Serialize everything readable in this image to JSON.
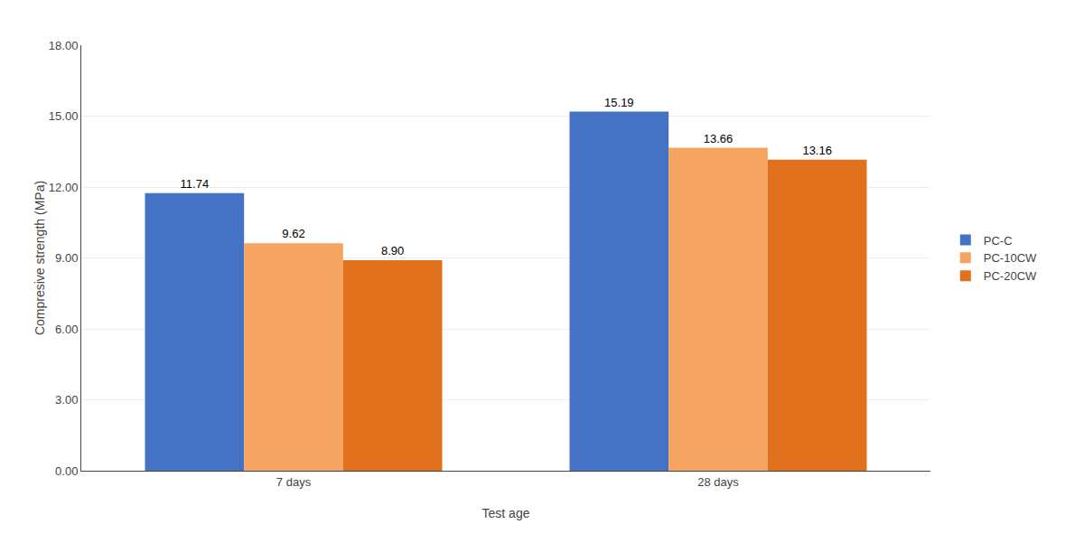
{
  "chart_data": {
    "type": "bar",
    "categories": [
      "7 days",
      "28 days"
    ],
    "series": [
      {
        "name": "PC-C",
        "color": "#4472C4",
        "values": [
          11.74,
          15.19
        ],
        "value_labels": [
          "11.74",
          "15.19"
        ]
      },
      {
        "name": "PC-10CW",
        "color": "#F4A460",
        "values": [
          9.62,
          13.66
        ],
        "value_labels": [
          "9.62",
          "13.66"
        ]
      },
      {
        "name": "PC-20CW",
        "color": "#E2711D",
        "values": [
          8.9,
          13.16
        ],
        "value_labels": [
          "8.90",
          "13.16"
        ]
      }
    ],
    "xlabel": "Test age",
    "ylabel": "Compresive strength (MPa)",
    "ylim": [
      0,
      18
    ],
    "yticks": [
      {
        "value": 0,
        "label": "0.00"
      },
      {
        "value": 3,
        "label": "3.00"
      },
      {
        "value": 6,
        "label": "6.00"
      },
      {
        "value": 9,
        "label": "9.00"
      },
      {
        "value": 12,
        "label": "12.00"
      },
      {
        "value": 15,
        "label": "15.00"
      },
      {
        "value": 18,
        "label": "18.00"
      }
    ],
    "grid": true,
    "legend": "right",
    "data_labels": true
  }
}
